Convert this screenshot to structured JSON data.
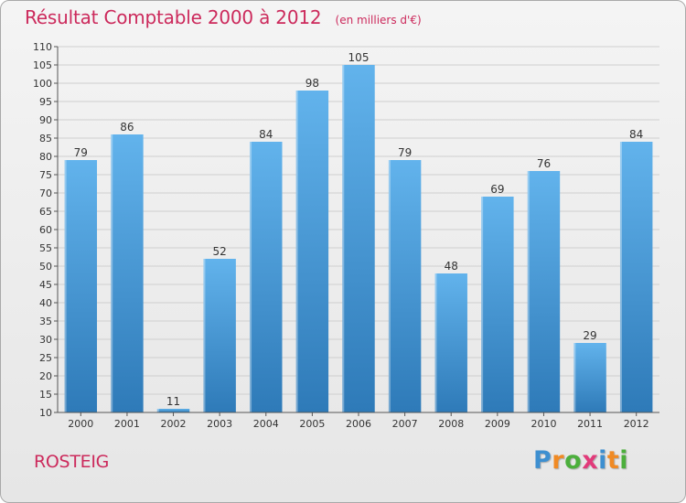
{
  "title": "Résultat Comptable 2000 à 2012",
  "unit": "(en milliers d'€)",
  "commune": "ROSTEIG",
  "logo": {
    "text": "Proxiti",
    "letters": [
      "P",
      "r",
      "o",
      "x",
      "i",
      "t",
      "i"
    ],
    "colors": [
      "#3d8fd0",
      "#f08a24",
      "#4caf3c",
      "#e23a7a",
      "#3d8fd0",
      "#f08a24",
      "#4caf3c"
    ]
  },
  "colors": {
    "bar_top": "#62b3ec",
    "bar_bottom": "#2e7ab8",
    "accent_text": "#cc2a5c",
    "grid": "#cfcfcf"
  },
  "chart_data": {
    "type": "bar",
    "categories": [
      "2000",
      "2001",
      "2002",
      "2003",
      "2004",
      "2005",
      "2006",
      "2007",
      "2008",
      "2009",
      "2010",
      "2011",
      "2012"
    ],
    "values": [
      79,
      86,
      11,
      52,
      84,
      98,
      105,
      79,
      48,
      69,
      76,
      29,
      84
    ],
    "ylim": [
      10,
      110
    ],
    "yticks": [
      10,
      15,
      20,
      25,
      30,
      35,
      40,
      45,
      50,
      55,
      60,
      65,
      70,
      75,
      80,
      85,
      90,
      95,
      100,
      105,
      110
    ],
    "grid": true,
    "data_labels": true
  }
}
